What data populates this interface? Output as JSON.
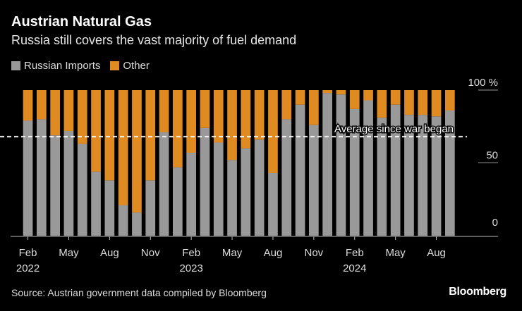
{
  "title": "Austrian Natural Gas",
  "subtitle": "Russia still covers the vast majority of fuel demand",
  "source": "Source: Austrian government data compiled by Bloomberg",
  "brand": "Bloomberg",
  "colors": {
    "russian": "#999999",
    "other": "#e08b22",
    "background": "#000000"
  },
  "chart_data": {
    "type": "bar",
    "stacked": true,
    "categories": [
      "Feb 2022",
      "Mar 2022",
      "Apr 2022",
      "May 2022",
      "Jun 2022",
      "Jul 2022",
      "Aug 2022",
      "Sep 2022",
      "Oct 2022",
      "Nov 2022",
      "Dec 2022",
      "Jan 2023",
      "Feb 2023",
      "Mar 2023",
      "Apr 2023",
      "May 2023",
      "Jun 2023",
      "Jul 2023",
      "Aug 2023",
      "Sep 2023",
      "Oct 2023",
      "Nov 2023",
      "Dec 2023",
      "Jan 2024",
      "Feb 2024",
      "Mar 2024",
      "Apr 2024",
      "May 2024",
      "Jun 2024",
      "Jul 2024",
      "Aug 2024",
      "Sep 2024"
    ],
    "series": [
      {
        "name": "Russian Imports",
        "values": [
          79,
          80,
          69,
          72,
          63,
          44,
          38,
          21,
          16,
          38,
          71,
          47,
          57,
          74,
          64,
          52,
          60,
          66,
          43,
          80,
          90,
          76,
          98,
          97,
          87,
          93,
          81,
          90,
          83,
          83,
          82,
          86
        ]
      },
      {
        "name": "Other",
        "values": [
          21,
          20,
          31,
          28,
          37,
          56,
          62,
          79,
          84,
          62,
          29,
          53,
          43,
          26,
          36,
          48,
          40,
          34,
          57,
          20,
          10,
          24,
          2,
          3,
          13,
          7,
          19,
          10,
          17,
          17,
          18,
          14
        ]
      }
    ],
    "ylim": [
      0,
      100
    ],
    "y_ticks": [
      {
        "value": 0,
        "label": "0"
      },
      {
        "value": 50,
        "label": "50"
      },
      {
        "value": 100,
        "label": "100 %"
      }
    ],
    "x_ticks": [
      {
        "index": 0,
        "month": "Feb",
        "year": "2022"
      },
      {
        "index": 3,
        "month": "May"
      },
      {
        "index": 6,
        "month": "Aug"
      },
      {
        "index": 9,
        "month": "Nov"
      },
      {
        "index": 12,
        "month": "Feb",
        "year": "2023"
      },
      {
        "index": 15,
        "month": "May"
      },
      {
        "index": 18,
        "month": "Aug"
      },
      {
        "index": 21,
        "month": "Nov"
      },
      {
        "index": 24,
        "month": "Feb",
        "year": "2024"
      },
      {
        "index": 27,
        "month": "May"
      },
      {
        "index": 30,
        "month": "Aug"
      }
    ],
    "reference_line": {
      "label": "Average since war began",
      "value": 68
    },
    "legend": "top-left",
    "y_axis_side": "right"
  }
}
